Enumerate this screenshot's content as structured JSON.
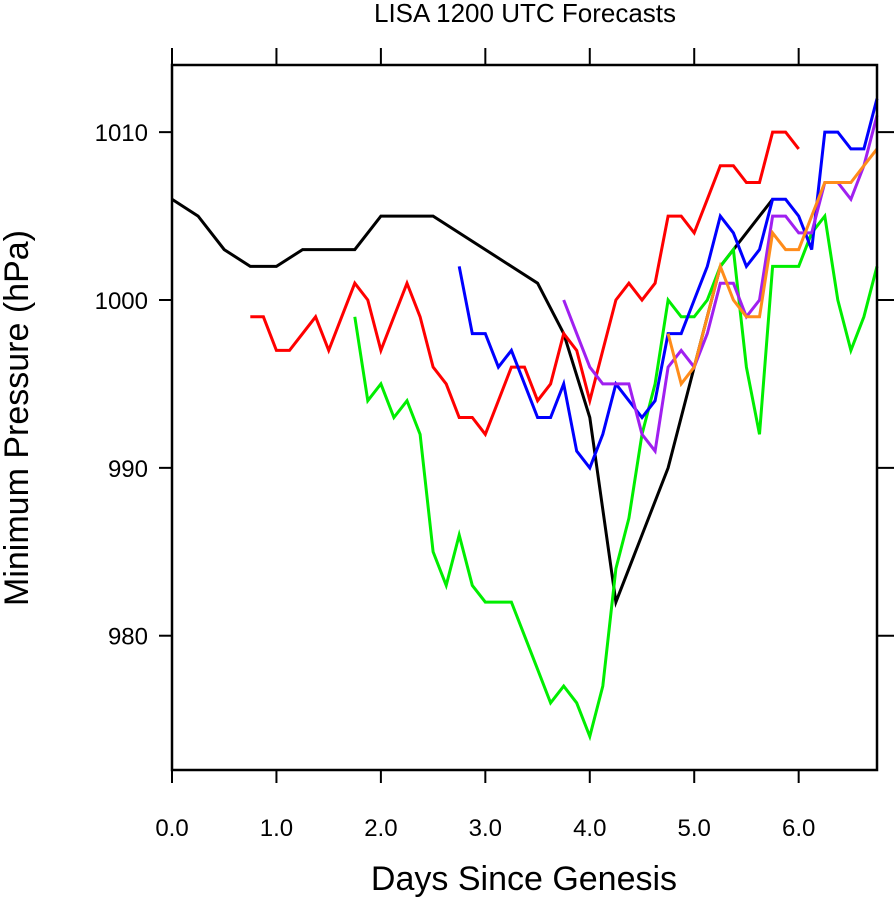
{
  "chart_data": {
    "type": "line",
    "title": "LISA 1200 UTC Forecasts",
    "xlabel": "Days Since Genesis",
    "ylabel": "Minimum Pressure (hPa)",
    "xlim": [
      0.0,
      6.75
    ],
    "ylim": [
      972,
      1014
    ],
    "x_ticks": [
      {
        "value": 0,
        "label": "0.0"
      },
      {
        "value": 1,
        "label": "1.0"
      },
      {
        "value": 2,
        "label": "2.0"
      },
      {
        "value": 3,
        "label": "3.0"
      },
      {
        "value": 4,
        "label": "4.0"
      },
      {
        "value": 5,
        "label": "5.0"
      },
      {
        "value": 6,
        "label": "6.0"
      }
    ],
    "y_ticks": [
      {
        "value": 980,
        "label": "980"
      },
      {
        "value": 990,
        "label": "990"
      },
      {
        "value": 1000,
        "label": "1000"
      },
      {
        "value": 1010,
        "label": "1010"
      }
    ],
    "grid": false,
    "legend": "none",
    "series": [
      {
        "color": "#000000",
        "x": [
          0.0,
          0.25,
          0.5,
          0.75,
          1.0,
          1.25,
          1.5,
          1.75,
          2.0,
          2.25,
          2.5,
          2.75,
          3.0,
          3.25,
          3.5,
          3.75,
          4.0,
          4.25,
          4.5,
          4.75,
          5.0,
          5.25,
          5.5,
          5.75
        ],
        "y": [
          1006,
          1005,
          1003,
          1002,
          1002,
          1003,
          1003,
          1003,
          1005,
          1005,
          1005,
          1004,
          1003,
          1002,
          1001,
          998,
          993,
          982,
          986,
          990,
          996,
          1002,
          1004,
          1006
        ]
      },
      {
        "color": "#ff0000",
        "x": [
          0.75,
          0.875,
          1.0,
          1.125,
          1.25,
          1.375,
          1.5,
          1.625,
          1.75,
          1.875,
          2.0,
          2.125,
          2.25,
          2.375,
          2.5,
          2.625,
          2.75,
          2.875,
          3.0,
          3.125,
          3.25,
          3.375,
          3.5,
          3.625,
          3.75,
          3.875,
          4.0,
          4.125,
          4.25,
          4.375,
          4.5,
          4.625,
          4.75,
          4.875,
          5.0,
          5.125,
          5.25,
          5.375,
          5.5,
          5.625,
          5.75,
          5.875,
          6.0
        ],
        "y": [
          999,
          999,
          997,
          997,
          998,
          999,
          997,
          999,
          1001,
          1000,
          997,
          999,
          1001,
          999,
          996,
          995,
          993,
          993,
          992,
          994,
          996,
          996,
          994,
          995,
          998,
          997,
          994,
          997,
          1000,
          1001,
          1000,
          1001,
          1005,
          1005,
          1004,
          1006,
          1008,
          1008,
          1007,
          1007,
          1010,
          1010,
          1009
        ]
      },
      {
        "color": "#00ee00",
        "x": [
          1.75,
          1.875,
          2.0,
          2.125,
          2.25,
          2.375,
          2.5,
          2.625,
          2.75,
          2.875,
          3.0,
          3.125,
          3.25,
          3.375,
          3.5,
          3.625,
          3.75,
          3.875,
          4.0,
          4.125,
          4.25,
          4.375,
          4.5,
          4.625,
          4.75,
          4.875,
          5.0,
          5.125,
          5.25,
          5.375,
          5.5,
          5.625,
          5.75,
          5.875,
          6.0,
          6.125,
          6.25,
          6.375,
          6.5,
          6.625,
          6.75
        ],
        "y": [
          999,
          994,
          995,
          993,
          994,
          992,
          985,
          983,
          986,
          983,
          982,
          982,
          982,
          980,
          978,
          976,
          977,
          976,
          974,
          977,
          984,
          987,
          992,
          995,
          1000,
          999,
          999,
          1000,
          1002,
          1003,
          996,
          992,
          1002,
          1002,
          1002,
          1004,
          1005,
          1000,
          997,
          999,
          1002
        ]
      },
      {
        "color": "#0000ff",
        "x": [
          2.75,
          2.875,
          3.0,
          3.125,
          3.25,
          3.375,
          3.5,
          3.625,
          3.75,
          3.875,
          4.0,
          4.125,
          4.25,
          4.375,
          4.5,
          4.625,
          4.75,
          4.875,
          5.0,
          5.125,
          5.25,
          5.375,
          5.5,
          5.625,
          5.75,
          5.875,
          6.0,
          6.125,
          6.25,
          6.375,
          6.5,
          6.625,
          6.75
        ],
        "y": [
          1002,
          998,
          998,
          996,
          997,
          995,
          993,
          993,
          995,
          991,
          990,
          992,
          995,
          994,
          993,
          994,
          998,
          998,
          1000,
          1002,
          1005,
          1004,
          1002,
          1003,
          1006,
          1006,
          1005,
          1003,
          1010,
          1010,
          1009,
          1009,
          1012
        ]
      },
      {
        "color": "#a020f0",
        "x": [
          3.75,
          3.875,
          4.0,
          4.125,
          4.25,
          4.375,
          4.5,
          4.625,
          4.75,
          4.875,
          5.0,
          5.125,
          5.25,
          5.375,
          5.5,
          5.625,
          5.75,
          5.875,
          6.0,
          6.125,
          6.25,
          6.375,
          6.5,
          6.625,
          6.75
        ],
        "y": [
          1000,
          998,
          996,
          995,
          995,
          995,
          992,
          991,
          996,
          997,
          996,
          998,
          1001,
          1001,
          999,
          1000,
          1005,
          1005,
          1004,
          1004,
          1007,
          1007,
          1006,
          1008,
          1011
        ]
      },
      {
        "color": "#ff8c1a",
        "x": [
          4.75,
          4.875,
          5.0,
          5.125,
          5.25,
          5.375,
          5.5,
          5.625,
          5.75,
          5.875,
          6.0,
          6.125,
          6.25,
          6.375,
          6.5,
          6.625,
          6.75
        ],
        "y": [
          998,
          995,
          996,
          999,
          1002,
          1000,
          999,
          999,
          1004,
          1003,
          1003,
          1005,
          1007,
          1007,
          1007,
          1008,
          1009
        ]
      }
    ]
  }
}
